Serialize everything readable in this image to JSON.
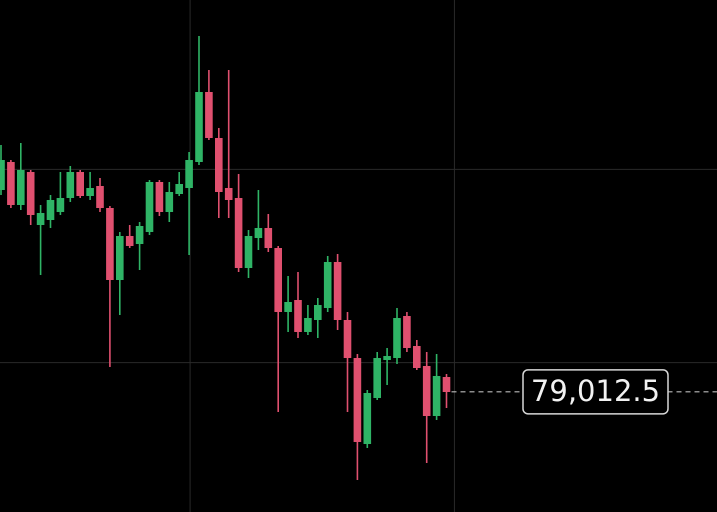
{
  "chart_data": {
    "type": "candlestick",
    "up_color": "#2fb466",
    "down_color": "#e0506f",
    "ylim": [
      78652,
      80188
    ],
    "ygrid": [
      79100,
      79680
    ],
    "xgrid": [
      19.1,
      45.8
    ],
    "open": [
      79618,
      79702,
      79573,
      79672,
      79513,
      79528,
      79552,
      79594,
      79672,
      79600,
      79630,
      79564,
      79348,
      79480,
      79456,
      79492,
      79642,
      79552,
      79606,
      79624,
      79702,
      79912,
      79774,
      79624,
      79594,
      79384,
      79474,
      79504,
      79444,
      79252,
      79288,
      79192,
      79228,
      79264,
      79402,
      79228,
      79114,
      78856,
      78994,
      79108,
      79114,
      79240,
      79150,
      79090,
      78940,
      79057
    ],
    "high": [
      79753,
      79708,
      79759,
      79678,
      79573,
      79603,
      79672,
      79690,
      79678,
      79672,
      79654,
      79570,
      79492,
      79513,
      79522,
      79648,
      79648,
      79642,
      79672,
      79732,
      80080,
      79978,
      79804,
      79978,
      79666,
      79498,
      79618,
      79546,
      79450,
      79360,
      79372,
      79273,
      79294,
      79420,
      79426,
      79252,
      79126,
      79018,
      79132,
      79144,
      79264,
      79252,
      79168,
      79132,
      79126,
      79066
    ],
    "low": [
      79603,
      79564,
      79558,
      79513,
      79363,
      79504,
      79543,
      79582,
      79594,
      79588,
      79552,
      79087,
      79243,
      79444,
      79378,
      79483,
      79540,
      79522,
      79600,
      79423,
      79693,
      79768,
      79534,
      79534,
      79372,
      79354,
      79438,
      79432,
      78952,
      79192,
      79174,
      79183,
      79174,
      79252,
      79198,
      78952,
      78748,
      78844,
      78988,
      79033,
      79096,
      79132,
      79078,
      78799,
      78928,
      78964
    ],
    "close": [
      79708,
      79573,
      79678,
      79543,
      79549,
      79588,
      79594,
      79672,
      79600,
      79624,
      79564,
      79348,
      79480,
      79450,
      79510,
      79642,
      79552,
      79612,
      79636,
      79708,
      79912,
      79774,
      79612,
      79588,
      79384,
      79480,
      79504,
      79444,
      79252,
      79282,
      79192,
      79234,
      79273,
      79402,
      79228,
      79114,
      78862,
      79009,
      79114,
      79120,
      79234,
      79144,
      79084,
      78940,
      79060,
      79012
    ],
    "last_price": {
      "value": 79012.5,
      "label": "79,012.5"
    }
  }
}
